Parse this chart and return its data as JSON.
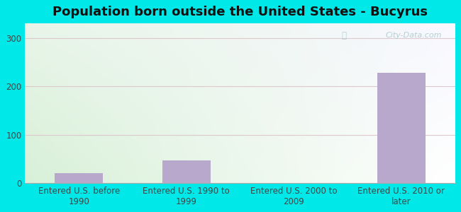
{
  "title": "Population born outside the United States - Bucyrus",
  "categories": [
    "Entered U.S. before\n1990",
    "Entered U.S. 1990 to\n1999",
    "Entered U.S. 2000 to\n2009",
    "Entered U.S. 2010 or\nlater"
  ],
  "values": [
    20,
    47,
    0,
    228
  ],
  "bar_color": "#b8a8cc",
  "background_color": "#00e8e8",
  "grad_color_topleft": "#e8f5e8",
  "grad_color_topright": "#f8f8ff",
  "grad_color_bottomleft": "#d8f0d8",
  "grad_color_bottomright": "#ffffff",
  "yticks": [
    0,
    100,
    200,
    300
  ],
  "ylim": [
    0,
    330
  ],
  "title_fontsize": 13,
  "tick_fontsize": 8.5,
  "watermark": "City-Data.com",
  "grid_color": "#ddc8cc"
}
